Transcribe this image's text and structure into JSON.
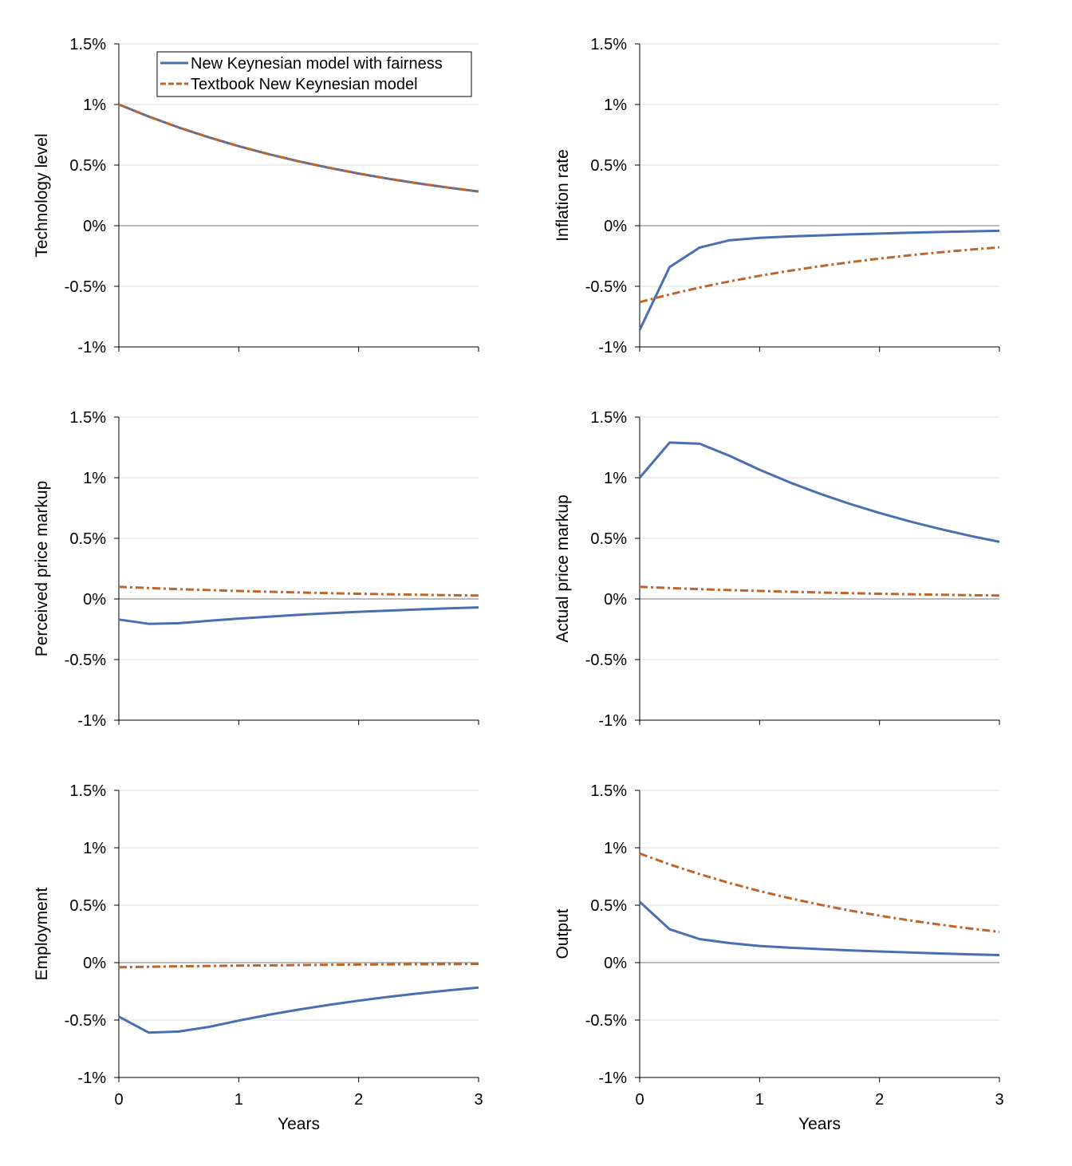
{
  "legend": {
    "position": "top-right of first panel",
    "entries": [
      {
        "label": "New Keynesian model with fairness",
        "color": "#4a6fb0",
        "style": "solid"
      },
      {
        "label": "Textbook New Keynesian model",
        "color": "#c0652a",
        "style": "dash-dot"
      }
    ]
  },
  "chart_data": [
    {
      "type": "line",
      "title": "",
      "ylabel": "Technology level",
      "xlabel": "",
      "x": [
        0,
        0.25,
        0.5,
        0.75,
        1,
        1.25,
        1.5,
        1.75,
        2,
        2.25,
        2.5,
        2.75,
        3
      ],
      "ylim": [
        -1,
        1.5
      ],
      "xlim": [
        0,
        3
      ],
      "yticks": [
        "-1%",
        "-0.5%",
        "0%",
        "0.5%",
        "1%",
        "1.5%"
      ],
      "xticks": [],
      "grid": true,
      "series": [
        {
          "name": "New Keynesian model with fairness",
          "values": [
            1,
            0.9,
            0.81,
            0.729,
            0.656,
            0.59,
            0.531,
            0.478,
            0.43,
            0.387,
            0.349,
            0.314,
            0.282
          ]
        },
        {
          "name": "Textbook New Keynesian model",
          "values": [
            1,
            0.9,
            0.81,
            0.729,
            0.656,
            0.59,
            0.531,
            0.478,
            0.43,
            0.387,
            0.349,
            0.314,
            0.282
          ]
        }
      ]
    },
    {
      "type": "line",
      "title": "",
      "ylabel": "Inflation rate",
      "xlabel": "",
      "x": [
        0,
        0.25,
        0.5,
        0.75,
        1,
        1.25,
        1.5,
        1.75,
        2,
        2.25,
        2.5,
        2.75,
        3
      ],
      "ylim": [
        -1,
        1.5
      ],
      "xlim": [
        0,
        3
      ],
      "yticks": [
        "-1%",
        "-0.5%",
        "0%",
        "0.5%",
        "1%",
        "1.5%"
      ],
      "xticks": [],
      "grid": true,
      "series": [
        {
          "name": "New Keynesian model with fairness",
          "values": [
            -0.86,
            -0.34,
            -0.18,
            -0.12,
            -0.1,
            -0.089,
            -0.08,
            -0.072,
            -0.065,
            -0.058,
            -0.052,
            -0.047,
            -0.042
          ]
        },
        {
          "name": "Textbook New Keynesian model",
          "values": [
            -0.63,
            -0.567,
            -0.51,
            -0.459,
            -0.413,
            -0.372,
            -0.335,
            -0.301,
            -0.271,
            -0.244,
            -0.22,
            -0.198,
            -0.178
          ]
        }
      ]
    },
    {
      "type": "line",
      "title": "",
      "ylabel": "Perceived price markup",
      "xlabel": "",
      "x": [
        0,
        0.25,
        0.5,
        0.75,
        1,
        1.25,
        1.5,
        1.75,
        2,
        2.25,
        2.5,
        2.75,
        3
      ],
      "ylim": [
        -1,
        1.5
      ],
      "xlim": [
        0,
        3
      ],
      "yticks": [
        "-1%",
        "-0.5%",
        "0%",
        "0.5%",
        "1%",
        "1.5%"
      ],
      "xticks": [],
      "grid": true,
      "series": [
        {
          "name": "New Keynesian model with fairness",
          "values": [
            -0.17,
            -0.205,
            -0.2,
            -0.18,
            -0.162,
            -0.146,
            -0.131,
            -0.118,
            -0.106,
            -0.096,
            -0.086,
            -0.077,
            -0.07
          ]
        },
        {
          "name": "Textbook New Keynesian model",
          "values": [
            0.1,
            0.09,
            0.081,
            0.073,
            0.066,
            0.059,
            0.053,
            0.048,
            0.043,
            0.039,
            0.035,
            0.031,
            0.028
          ]
        }
      ]
    },
    {
      "type": "line",
      "title": "",
      "ylabel": "Actual price markup",
      "xlabel": "",
      "x": [
        0,
        0.25,
        0.5,
        0.75,
        1,
        1.25,
        1.5,
        1.75,
        2,
        2.25,
        2.5,
        2.75,
        3
      ],
      "ylim": [
        -1,
        1.5
      ],
      "xlim": [
        0,
        3
      ],
      "yticks": [
        "-1%",
        "-0.5%",
        "0%",
        "0.5%",
        "1%",
        "1.5%"
      ],
      "xticks": [],
      "grid": true,
      "series": [
        {
          "name": "New Keynesian model with fairness",
          "values": [
            1,
            1.29,
            1.28,
            1.18,
            1.066,
            0.962,
            0.869,
            0.785,
            0.709,
            0.64,
            0.578,
            0.522,
            0.471
          ]
        },
        {
          "name": "Textbook New Keynesian model",
          "values": [
            0.1,
            0.09,
            0.081,
            0.073,
            0.066,
            0.059,
            0.053,
            0.048,
            0.043,
            0.039,
            0.035,
            0.031,
            0.028
          ]
        }
      ]
    },
    {
      "type": "line",
      "title": "",
      "ylabel": "Employment",
      "xlabel": "Years",
      "x": [
        0,
        0.25,
        0.5,
        0.75,
        1,
        1.25,
        1.5,
        1.75,
        2,
        2.25,
        2.5,
        2.75,
        3
      ],
      "ylim": [
        -1,
        1.5
      ],
      "xlim": [
        0,
        3
      ],
      "yticks": [
        "-1%",
        "-0.5%",
        "0%",
        "0.5%",
        "1%",
        "1.5%"
      ],
      "xticks": [
        "0",
        "1",
        "2",
        "3"
      ],
      "grid": true,
      "series": [
        {
          "name": "New Keynesian model with fairness",
          "values": [
            -0.47,
            -0.61,
            -0.6,
            -0.56,
            -0.505,
            -0.454,
            -0.409,
            -0.368,
            -0.331,
            -0.298,
            -0.268,
            -0.241,
            -0.217
          ]
        },
        {
          "name": "Textbook New Keynesian model",
          "values": [
            -0.04,
            -0.036,
            -0.032,
            -0.029,
            -0.026,
            -0.024,
            -0.021,
            -0.019,
            -0.017,
            -0.015,
            -0.014,
            -0.013,
            -0.011
          ]
        }
      ]
    },
    {
      "type": "line",
      "title": "",
      "ylabel": "Output",
      "xlabel": "Years",
      "x": [
        0,
        0.25,
        0.5,
        0.75,
        1,
        1.25,
        1.5,
        1.75,
        2,
        2.25,
        2.5,
        2.75,
        3
      ],
      "ylim": [
        -1,
        1.5
      ],
      "xlim": [
        0,
        3
      ],
      "yticks": [
        "-1%",
        "-0.5%",
        "0%",
        "0.5%",
        "1%",
        "1.5%"
      ],
      "xticks": [
        "0",
        "1",
        "2",
        "3"
      ],
      "grid": true,
      "series": [
        {
          "name": "New Keynesian model with fairness",
          "values": [
            0.53,
            0.29,
            0.205,
            0.17,
            0.145,
            0.13,
            0.118,
            0.107,
            0.097,
            0.088,
            0.08,
            0.072,
            0.066
          ]
        },
        {
          "name": "Textbook New Keynesian model",
          "values": [
            0.95,
            0.855,
            0.77,
            0.693,
            0.623,
            0.561,
            0.505,
            0.454,
            0.409,
            0.368,
            0.331,
            0.298,
            0.268
          ]
        }
      ]
    }
  ]
}
